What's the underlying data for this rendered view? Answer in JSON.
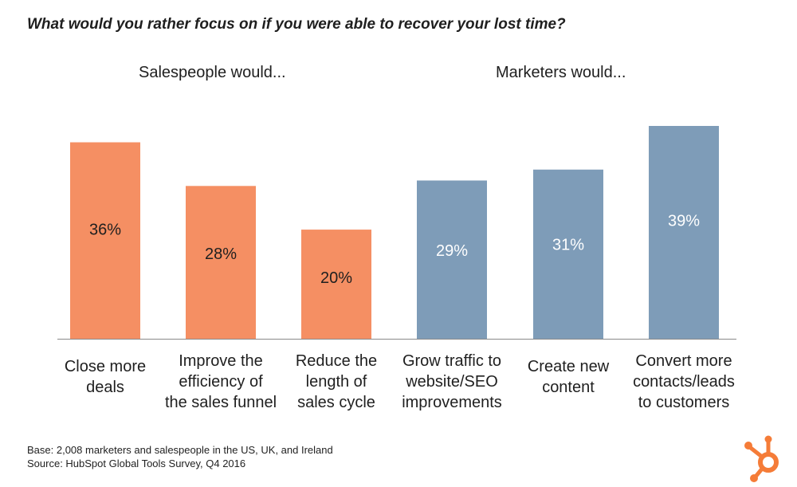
{
  "chart_data": {
    "type": "bar",
    "title": "What would you rather focus on if you were able to recover your lost time?",
    "groups": [
      {
        "label": "Salespeople would...",
        "color": "#f58f63",
        "value_label_color": "#1f1f1f"
      },
      {
        "label": "Marketers would...",
        "color": "#7e9cb8",
        "value_label_color": "#ffffff"
      }
    ],
    "categories": [
      [
        "Close more",
        "deals"
      ],
      [
        "Improve the",
        "efficiency of",
        "the sales funnel"
      ],
      [
        "Reduce the",
        "length of",
        "sales cycle"
      ],
      [
        "Grow traffic to",
        "website/SEO",
        "improvements"
      ],
      [
        "Create new",
        "content"
      ],
      [
        "Convert more",
        "contacts/leads",
        "to customers"
      ]
    ],
    "values": [
      36,
      28,
      20,
      29,
      31,
      39
    ],
    "value_labels": [
      "36%",
      "28%",
      "20%",
      "29%",
      "31%",
      "39%"
    ],
    "bar_group": [
      0,
      0,
      0,
      1,
      1,
      1
    ],
    "ylim": [
      0,
      39
    ],
    "grid": false
  },
  "footnotes": {
    "base": "Base: 2,008 marketers and salespeople in the US, UK, and Ireland",
    "source": "Source: HubSpot Global Tools Survey, Q4 2016"
  },
  "logo": {
    "icon": "hubspot-sprocket-icon",
    "color": "#f57c38"
  }
}
